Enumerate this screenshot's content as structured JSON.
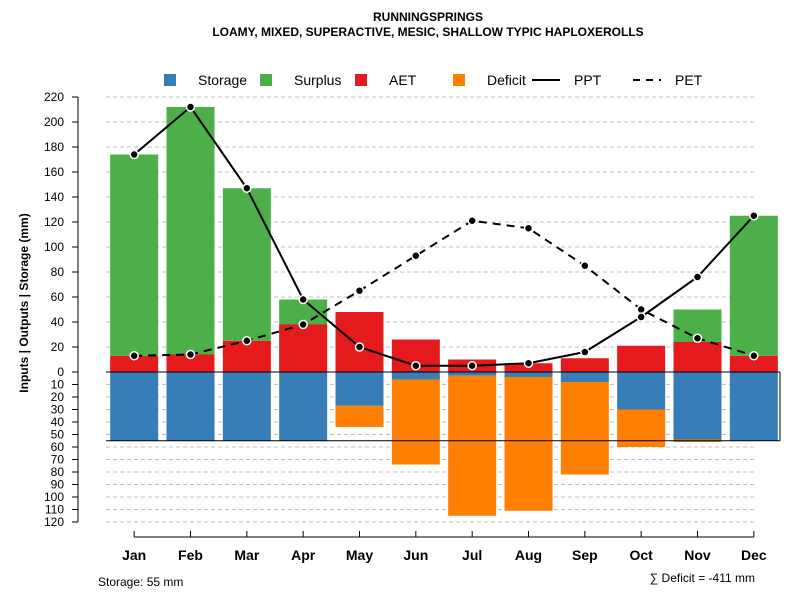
{
  "chart_data": {
    "type": "bar",
    "title": "RUNNINGSPRINGS",
    "subtitle": "LOAMY, MIXED, SUPERACTIVE, MESIC, SHALLOW TYPIC HAPLOXEROLLS",
    "ylabel": "Inputs | Outputs | Storage     (mm)",
    "categories": [
      "Jan",
      "Feb",
      "Mar",
      "Apr",
      "May",
      "Jun",
      "Jul",
      "Aug",
      "Sep",
      "Oct",
      "Nov",
      "Dec"
    ],
    "ylim_top": [
      0,
      220
    ],
    "ylim_bottom": [
      0,
      120
    ],
    "yticks_top": [
      0,
      20,
      40,
      60,
      80,
      100,
      120,
      140,
      160,
      180,
      200,
      220
    ],
    "yticks_bottom": [
      10,
      20,
      30,
      40,
      50,
      60,
      70,
      80,
      90,
      100,
      110,
      120
    ],
    "legend": [
      {
        "name": "Storage",
        "kind": "box",
        "color": "#377EB8"
      },
      {
        "name": "Surplus",
        "kind": "box",
        "color": "#4DAF4A"
      },
      {
        "name": "AET",
        "kind": "box",
        "color": "#E41A1C"
      },
      {
        "name": "Deficit",
        "kind": "box",
        "color": "#FF7F00"
      },
      {
        "name": "PPT",
        "kind": "solid",
        "color": "#000000"
      },
      {
        "name": "PET",
        "kind": "dashed",
        "color": "#000000"
      }
    ],
    "series": [
      {
        "name": "AET",
        "values": [
          13,
          14,
          25,
          38,
          48,
          26,
          10,
          7,
          11,
          21,
          24,
          13
        ]
      },
      {
        "name": "Surplus",
        "values": [
          161,
          198,
          122,
          20,
          0,
          0,
          0,
          0,
          0,
          0,
          26,
          112
        ]
      },
      {
        "name": "Storage",
        "values": [
          55,
          55,
          55,
          55,
          27,
          6,
          3,
          4,
          8,
          30,
          54,
          55
        ]
      },
      {
        "name": "Deficit",
        "values": [
          0,
          0,
          0,
          0,
          17,
          68,
          112,
          107,
          74,
          30,
          2,
          0
        ]
      },
      {
        "name": "PPT",
        "values": [
          174,
          212,
          147,
          58,
          20,
          5,
          5,
          7,
          16,
          44,
          76,
          125
        ]
      },
      {
        "name": "PET",
        "values": [
          13,
          14,
          25,
          38,
          65,
          93,
          121,
          115,
          85,
          50,
          27,
          13
        ]
      }
    ],
    "storage_capacity": 55,
    "colors": {
      "storage": "#377EB8",
      "surplus": "#4DAF4A",
      "aet": "#E41A1C",
      "deficit": "#FF7F00"
    }
  },
  "footer": {
    "storage_label": "Storage: 55 mm",
    "deficit_label": "∑ Deficit = -411 mm"
  }
}
